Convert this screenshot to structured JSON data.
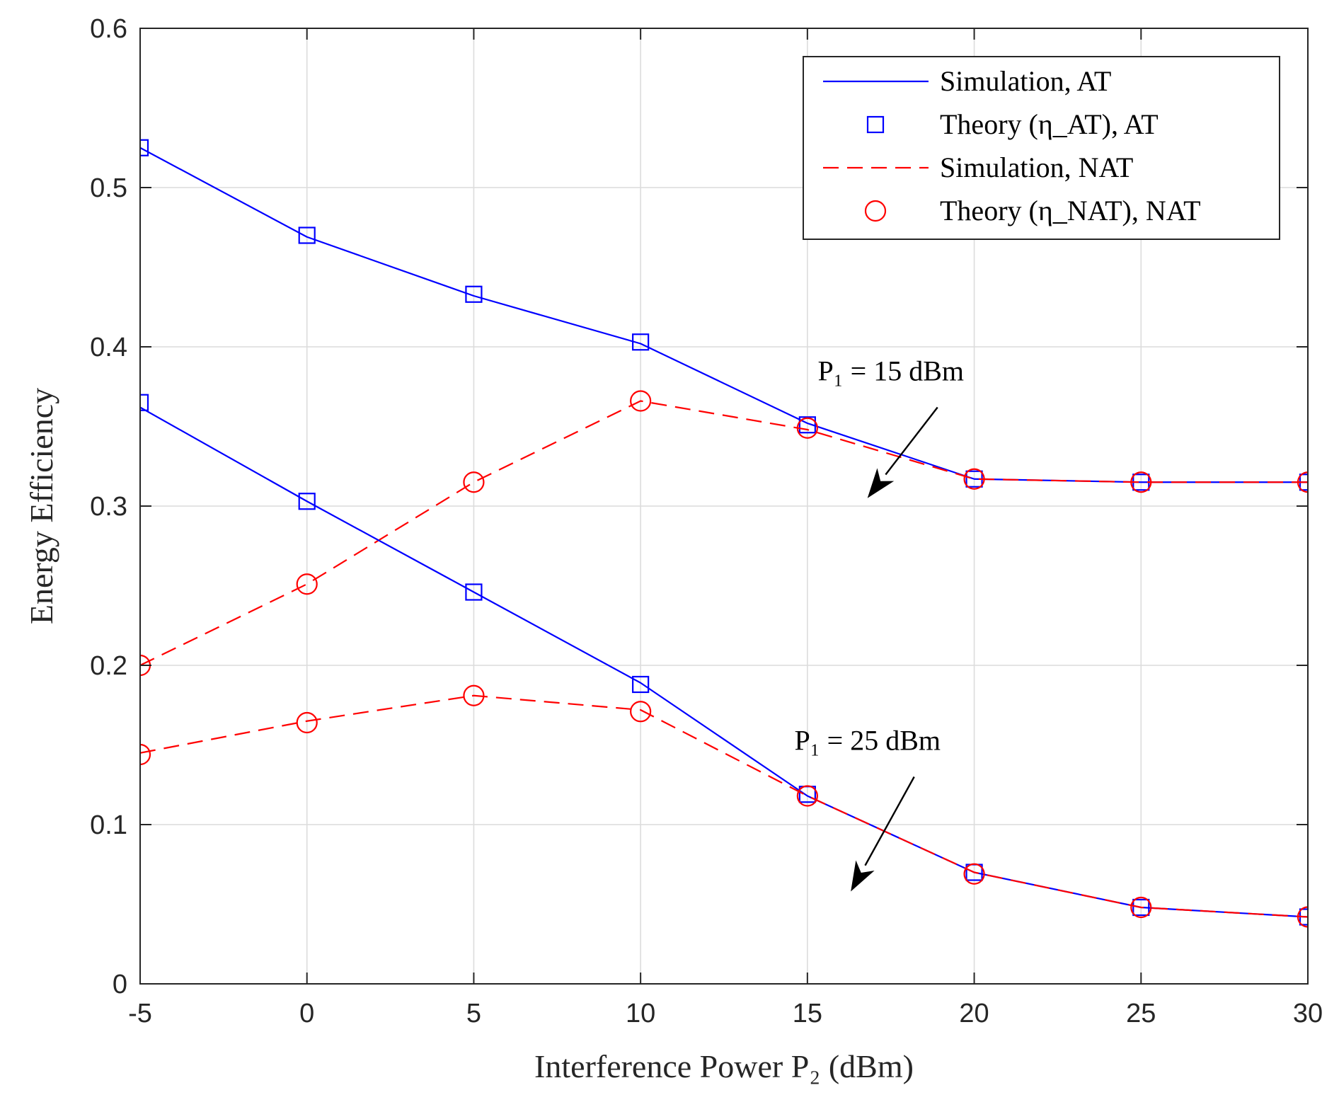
{
  "chart_data": {
    "type": "line",
    "title": "",
    "xlabel": "Interference Power P₂ (dBm)",
    "ylabel": "Energy Efficiency",
    "x": [
      -5,
      0,
      5,
      10,
      15,
      20,
      25,
      30
    ],
    "xlim": [
      -5,
      30
    ],
    "ylim": [
      0,
      0.6
    ],
    "xticks": [
      -5,
      0,
      5,
      10,
      15,
      20,
      25,
      30
    ],
    "yticks": [
      0,
      0.1,
      0.2,
      0.3,
      0.4,
      0.5,
      0.6
    ],
    "xtick_labels": [
      "-5",
      "0",
      "5",
      "10",
      "15",
      "20",
      "25",
      "30"
    ],
    "ytick_labels": [
      "0",
      "0.1",
      "0.2",
      "0.3",
      "0.4",
      "0.5",
      "0.6"
    ],
    "grid": true,
    "legend_position": "top-right",
    "legend": [
      {
        "label": "Simulation, AT",
        "style": "solid-line",
        "color": "#0000ff"
      },
      {
        "label": "Theory (η_AT), AT",
        "style": "square-marker",
        "color": "#0000ff"
      },
      {
        "label": "Simulation, NAT",
        "style": "dashed-line",
        "color": "#ff0000"
      },
      {
        "label": "Theory (η_NAT), NAT",
        "style": "circle-marker",
        "color": "#ff0000"
      }
    ],
    "series": [
      {
        "name": "Simulation, AT (P1 = 15 dBm)",
        "kind": "line",
        "dash": false,
        "color": "#0000ff",
        "values": [
          0.525,
          0.469,
          0.432,
          0.402,
          0.352,
          0.317,
          0.315,
          0.315
        ]
      },
      {
        "name": "Theory (η_AT), AT (P1 = 15 dBm)",
        "kind": "marker",
        "marker": "square",
        "color": "#0000ff",
        "values": [
          0.525,
          0.47,
          0.433,
          0.403,
          0.351,
          0.317,
          0.315,
          0.315
        ]
      },
      {
        "name": "Simulation, NAT (P1 = 15 dBm)",
        "kind": "line",
        "dash": true,
        "color": "#ff0000",
        "values": [
          0.2,
          0.251,
          0.315,
          0.366,
          0.348,
          0.317,
          0.315,
          0.315
        ]
      },
      {
        "name": "Theory (η_NAT), NAT (P1 = 15 dBm)",
        "kind": "marker",
        "marker": "circle",
        "color": "#ff0000",
        "values": [
          0.2,
          0.251,
          0.315,
          0.366,
          0.349,
          0.317,
          0.315,
          0.315
        ]
      },
      {
        "name": "Simulation, AT (P1 = 25 dBm)",
        "kind": "line",
        "dash": false,
        "color": "#0000ff",
        "values": [
          0.362,
          0.303,
          0.246,
          0.189,
          0.118,
          0.07,
          0.048,
          0.042
        ]
      },
      {
        "name": "Theory (η_AT), AT (P1 = 25 dBm)",
        "kind": "marker",
        "marker": "square",
        "color": "#0000ff",
        "values": [
          0.365,
          0.303,
          0.246,
          0.188,
          0.119,
          0.07,
          0.048,
          0.042
        ]
      },
      {
        "name": "Simulation, NAT (P1 = 25 dBm)",
        "kind": "line",
        "dash": true,
        "color": "#ff0000",
        "values": [
          0.145,
          0.165,
          0.181,
          0.172,
          0.118,
          0.07,
          0.048,
          0.042
        ]
      },
      {
        "name": "Theory (η_NAT), NAT (P1 = 25 dBm)",
        "kind": "marker",
        "marker": "circle",
        "color": "#ff0000",
        "values": [
          0.144,
          0.164,
          0.181,
          0.171,
          0.118,
          0.069,
          0.048,
          0.042
        ]
      }
    ],
    "annotations": [
      {
        "text": "P₁ = 15 dBm",
        "x": 17.5,
        "y": 0.379,
        "arrow_from": [
          18.9,
          0.362
        ],
        "arrow_to": [
          16.8,
          0.305
        ]
      },
      {
        "text": "P₁ = 25 dBm",
        "x": 16.8,
        "y": 0.147,
        "arrow_from": [
          18.2,
          0.13
        ],
        "arrow_to": [
          16.3,
          0.058
        ]
      }
    ]
  }
}
